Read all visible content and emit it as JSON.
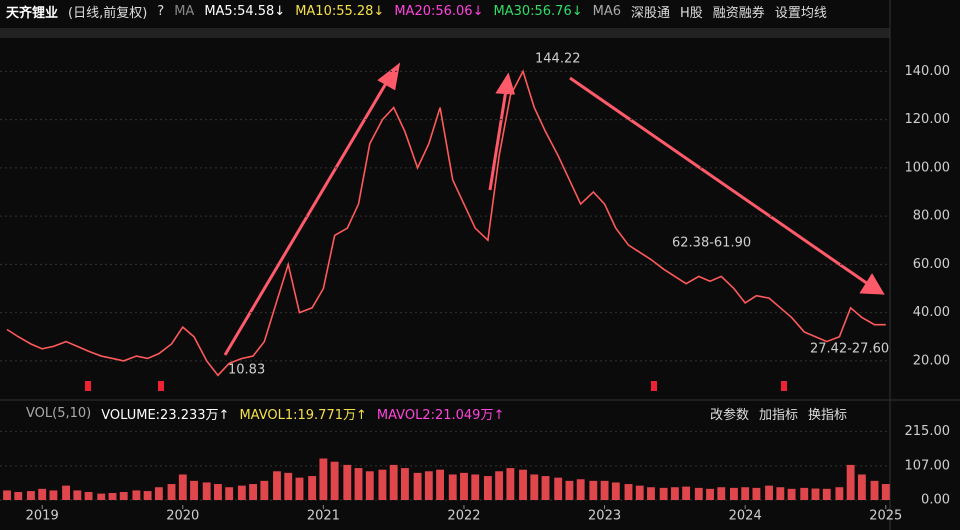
{
  "toolbar": {
    "stock": "天齐锂业",
    "mode": "(日线,前复权)",
    "help": "?",
    "ma": "MA",
    "ma5": "MA5:54.58↓",
    "ma10": "MA10:55.28↓",
    "ma20": "MA20:56.06↓",
    "ma30": "MA30:56.76↓",
    "ma_more": "MA6",
    "buttons": [
      "深股通",
      "H股",
      "融资融券",
      "设置均线"
    ]
  },
  "volume_toolbar": {
    "vol": "VOL(5,10)",
    "volume": "VOLUME:23.233万↑",
    "mavol1": "MAVOL1:19.771万↑",
    "mavol2": "MAVOL2:21.049万↑",
    "buttons": [
      "改参数",
      "加指标",
      "换指标"
    ]
  },
  "chart_data": [
    {
      "type": "line",
      "x": [
        2018.75,
        2018.83,
        2018.92,
        2019.0,
        2019.08,
        2019.17,
        2019.25,
        2019.33,
        2019.42,
        2019.5,
        2019.58,
        2019.67,
        2019.75,
        2019.83,
        2019.92,
        2020.0,
        2020.08,
        2020.17,
        2020.25,
        2020.33,
        2020.42,
        2020.5,
        2020.58,
        2020.67,
        2020.75,
        2020.83,
        2020.92,
        2021.0,
        2021.08,
        2021.17,
        2021.25,
        2021.33,
        2021.42,
        2021.5,
        2021.58,
        2021.67,
        2021.75,
        2021.83,
        2021.92,
        2022.0,
        2022.08,
        2022.17,
        2022.25,
        2022.33,
        2022.42,
        2022.5,
        2022.58,
        2022.67,
        2022.75,
        2022.83,
        2022.92,
        2023.0,
        2023.08,
        2023.17,
        2023.25,
        2023.33,
        2023.42,
        2023.5,
        2023.58,
        2023.67,
        2023.75,
        2023.83,
        2023.92,
        2024.0,
        2024.08,
        2024.17,
        2024.25,
        2024.33,
        2024.42,
        2024.5,
        2024.58,
        2024.67,
        2024.75,
        2024.83,
        2024.92,
        2025.0
      ],
      "values": [
        33,
        30,
        27,
        25,
        26,
        28,
        26,
        24,
        22,
        21,
        20,
        22,
        21,
        23,
        27,
        34,
        30,
        20,
        14,
        19,
        21,
        22,
        28,
        45,
        60,
        40,
        42,
        50,
        72,
        75,
        85,
        110,
        120,
        125,
        115,
        100,
        110,
        125,
        95,
        85,
        75,
        70,
        105,
        130,
        140,
        125,
        115,
        105,
        95,
        85,
        90,
        85,
        75,
        68,
        65,
        62,
        58,
        55,
        52,
        55,
        53,
        55,
        50,
        44,
        47,
        46,
        42,
        38,
        32,
        30,
        28,
        30,
        42,
        38,
        35,
        35
      ],
      "color": "#ff5a5a",
      "xlim": [
        2018.7,
        2025.03
      ],
      "xticks": [
        2019,
        2020,
        2021,
        2022,
        2023,
        2024,
        2025
      ],
      "ylim": [
        10,
        153
      ],
      "yticks": [
        {
          "value": 20,
          "label": "20.00"
        },
        {
          "value": 40,
          "label": "40.00"
        },
        {
          "value": 60,
          "label": "60.00"
        },
        {
          "value": 80,
          "label": "80.00"
        },
        {
          "value": 100,
          "label": "100.00"
        },
        {
          "value": 120,
          "label": "120.00"
        },
        {
          "value": 140,
          "label": "140.00"
        }
      ],
      "grid": true,
      "annotations": [
        "144.22",
        "10.83",
        "62.38-61.90",
        "27.42-27.60"
      ]
    },
    {
      "type": "bar",
      "x": [
        2018.75,
        2018.83,
        2018.92,
        2019.0,
        2019.08,
        2019.17,
        2019.25,
        2019.33,
        2019.42,
        2019.5,
        2019.58,
        2019.67,
        2019.75,
        2019.83,
        2019.92,
        2020.0,
        2020.08,
        2020.17,
        2020.25,
        2020.33,
        2020.42,
        2020.5,
        2020.58,
        2020.67,
        2020.75,
        2020.83,
        2020.92,
        2021.0,
        2021.08,
        2021.17,
        2021.25,
        2021.33,
        2021.42,
        2021.5,
        2021.58,
        2021.67,
        2021.75,
        2021.83,
        2021.92,
        2022.0,
        2022.08,
        2022.17,
        2022.25,
        2022.33,
        2022.42,
        2022.5,
        2022.58,
        2022.67,
        2022.75,
        2022.83,
        2022.92,
        2023.0,
        2023.08,
        2023.17,
        2023.25,
        2023.33,
        2023.42,
        2023.5,
        2023.58,
        2023.67,
        2023.75,
        2023.83,
        2023.92,
        2024.0,
        2024.08,
        2024.17,
        2024.25,
        2024.33,
        2024.42,
        2024.5,
        2024.58,
        2024.67,
        2024.75,
        2024.83,
        2024.92,
        2025.0
      ],
      "values": [
        30,
        25,
        28,
        35,
        30,
        45,
        30,
        25,
        20,
        22,
        25,
        30,
        28,
        40,
        50,
        80,
        60,
        55,
        50,
        40,
        45,
        50,
        60,
        90,
        85,
        70,
        75,
        130,
        120,
        110,
        100,
        90,
        95,
        110,
        100,
        85,
        90,
        95,
        80,
        85,
        80,
        75,
        90,
        100,
        95,
        80,
        75,
        70,
        60,
        65,
        60,
        60,
        55,
        50,
        45,
        40,
        38,
        40,
        42,
        38,
        35,
        40,
        38,
        40,
        38,
        45,
        40,
        35,
        38,
        36,
        35,
        40,
        110,
        80,
        60,
        50
      ],
      "color": "#e0474c",
      "xlim": [
        2018.7,
        2025.03
      ],
      "ylim": [
        0,
        235
      ],
      "yticks": [
        {
          "value": 0,
          "label": "0.00"
        },
        {
          "value": 107,
          "label": "107.00"
        },
        {
          "value": 215,
          "label": "215.00"
        }
      ]
    }
  ]
}
